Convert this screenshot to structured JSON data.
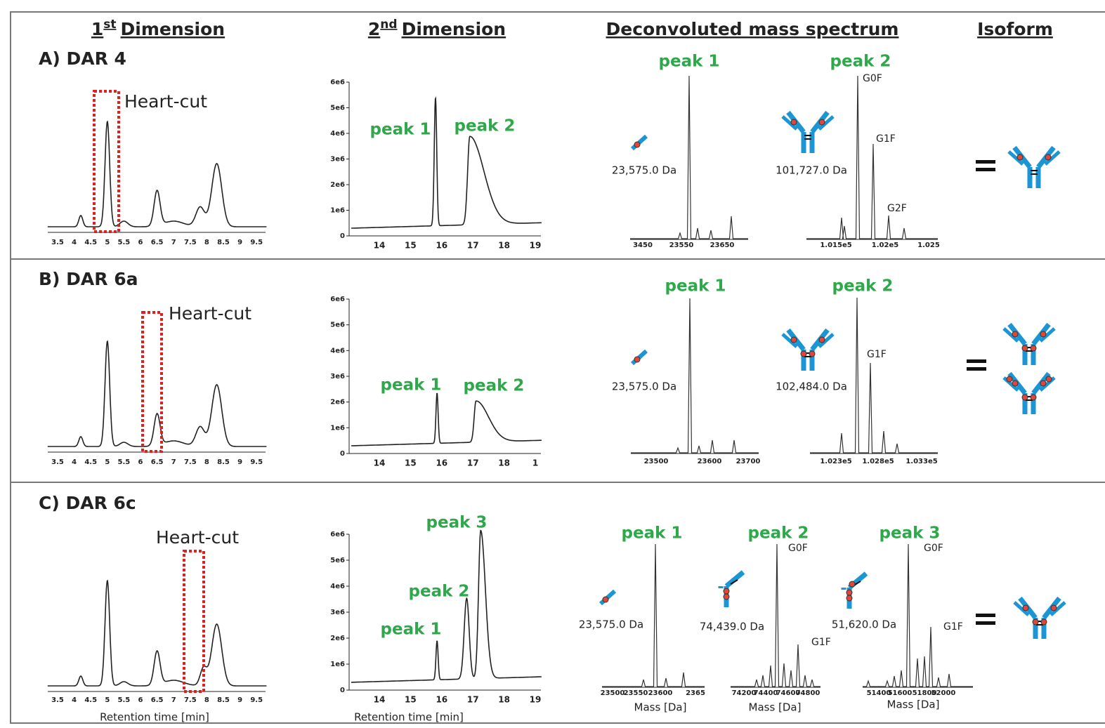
{
  "columns": [
    {
      "number": "1",
      "sup": "st",
      "text": "Dimension"
    },
    {
      "number": "2",
      "sup": "nd",
      "text": "Dimension"
    },
    {
      "text": "Deconvoluted mass spectrum"
    },
    {
      "text": "Isoform"
    }
  ],
  "rows": [
    {
      "label": "A) DAR 4",
      "heart_cut": "Heart-cut",
      "first_dim": {
        "xticks": [
          "3.5",
          "4",
          "4.5",
          "5",
          "5.5",
          "6",
          "6.5",
          "7",
          "7.5",
          "8",
          "8.5",
          "9",
          "9.5"
        ]
      },
      "second_dim": {
        "yticks": [
          "0",
          "1e6",
          "2e6",
          "3e6",
          "4e6",
          "5e6",
          "6e6"
        ],
        "xticks": [
          "14",
          "15",
          "16",
          "17",
          "18",
          "19"
        ],
        "peaks": [
          "peak 1",
          "peak 2"
        ]
      },
      "spectra": [
        {
          "peak": "peak 1",
          "mass": "23,575.0 Da",
          "xticks": [
            "3450",
            "23550",
            "23650"
          ]
        },
        {
          "peak": "peak 2",
          "mass": "101,727.0 Da",
          "xticks": [
            "1.015e5",
            "1.02e5",
            "1.025"
          ],
          "glycoforms": [
            "G0F",
            "G1F",
            "G2F"
          ]
        }
      ]
    },
    {
      "label": "B) DAR 6a",
      "heart_cut": "Heart-cut",
      "first_dim": {
        "xticks": [
          "3.5",
          "4",
          "4.5",
          "5",
          "5.5",
          "6",
          "6.5",
          "7",
          "7.5",
          "8",
          "8.5",
          "9",
          "9.5"
        ]
      },
      "second_dim": {
        "yticks": [
          "0",
          "1e6",
          "2e6",
          "3e6",
          "4e6",
          "5e6",
          "6e6"
        ],
        "xticks": [
          "14",
          "15",
          "16",
          "17",
          "18",
          "1"
        ],
        "peaks": [
          "peak 1",
          "peak 2"
        ]
      },
      "spectra": [
        {
          "peak": "peak 1",
          "mass": "23,575.0 Da",
          "xticks": [
            "23500",
            "23600",
            "23700"
          ]
        },
        {
          "peak": "peak 2",
          "mass": "102,484.0 Da",
          "xticks": [
            "1.023e5",
            "1.028e5",
            "1.033e5"
          ],
          "glycoforms": [
            "G1F"
          ]
        }
      ]
    },
    {
      "label": "C) DAR 6c",
      "heart_cut": "Heart-cut",
      "first_dim": {
        "xticks": [
          "3.5",
          "4",
          "4.5",
          "5",
          "5.5",
          "6",
          "6.5",
          "7",
          "7.5",
          "8",
          "8.5",
          "9",
          "9.5"
        ],
        "xlabel": "Retention time [min]"
      },
      "second_dim": {
        "yticks": [
          "0",
          "1e6",
          "2e6",
          "3e6",
          "4e6",
          "5e6",
          "6e6"
        ],
        "xticks": [
          "14",
          "15",
          "16",
          "17",
          "18",
          "19"
        ],
        "peaks": [
          "peak 1",
          "peak 2",
          "peak 3"
        ],
        "xlabel": "Retention time [min]"
      },
      "spectra": [
        {
          "peak": "peak 1",
          "mass": "23,575.0 Da",
          "xticks": [
            "23500",
            "23550",
            "23600",
            "2365"
          ],
          "xlabel": "Mass [Da]"
        },
        {
          "peak": "peak 2",
          "mass": "74,439.0 Da",
          "xticks": [
            "74200",
            "74400",
            "74600",
            "74800"
          ],
          "glycoforms": [
            "G0F",
            "G1F"
          ],
          "xlabel": "Mass [Da]"
        },
        {
          "peak": "peak 3",
          "mass": "51,620.0 Da",
          "xticks": [
            "51400",
            "51600",
            "51800",
            "52000"
          ],
          "glycoforms": [
            "G0F",
            "G1F"
          ],
          "xlabel": "Mass [Da]"
        }
      ]
    }
  ]
}
